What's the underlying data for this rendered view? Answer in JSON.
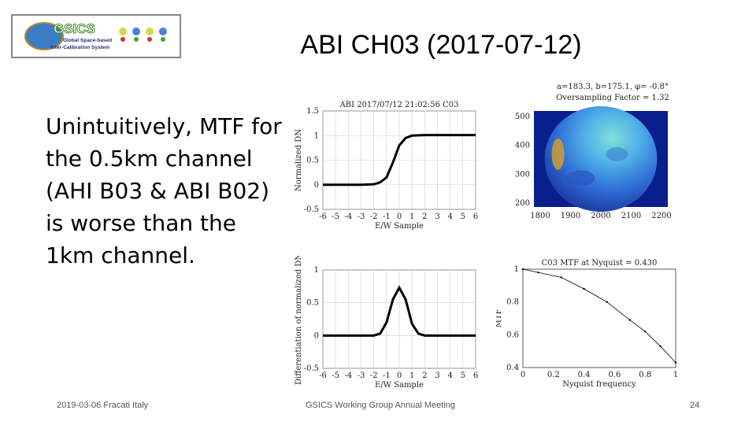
{
  "logo": {
    "name": "GSICS",
    "line1": "Global Space-based",
    "line2": "Inter-Calibration System"
  },
  "title": "ABI CH03 (2017-07-12)",
  "body_text": "Unintuitively, MTF for the 0.5km channel (AHI B03 & ABI B02) is worse than the 1km channel.",
  "footer": {
    "date_place": "2019-03-06 Fracati Italy",
    "meeting": "GSICS Working Group Annual Meeting",
    "page": "24"
  },
  "colors": {
    "plot_line": "#000000",
    "grid": "#cfcfcf",
    "moon_blue": "#2f6fd6",
    "moon_cyan": "#6ad0e0"
  },
  "chart_data": [
    {
      "type": "scatter",
      "title": "ABI 2017/07/12 21:02:56 C03",
      "xlabel": "E/W Sample",
      "ylabel": "Normalized DN",
      "xlim": [
        -6,
        6
      ],
      "ylim": [
        -0.5,
        1.5
      ],
      "xticks": [
        "-6",
        "-5",
        "-4",
        "-3",
        "-2",
        "-1",
        "0",
        "1",
        "2",
        "3",
        "4",
        "5",
        "6"
      ],
      "yticks": [
        "-0.5",
        "0",
        "0.5",
        "1",
        "1.5"
      ],
      "grid": true,
      "points": [
        [
          -6,
          0
        ],
        [
          -3,
          0
        ],
        [
          -2,
          0.01
        ],
        [
          -1.5,
          0.05
        ],
        [
          -1,
          0.15
        ],
        [
          -0.5,
          0.45
        ],
        [
          0,
          0.8
        ],
        [
          0.5,
          0.95
        ],
        [
          1,
          1.0
        ],
        [
          2,
          1.01
        ],
        [
          4,
          1.01
        ],
        [
          6,
          1.01
        ]
      ]
    },
    {
      "type": "line",
      "xlabel": "E/W Sample",
      "ylabel": "Differentiation of normalized DN",
      "xlim": [
        -6,
        6
      ],
      "ylim": [
        -0.5,
        1
      ],
      "xticks": [
        "-6",
        "-5",
        "-4",
        "-3",
        "-2",
        "-1",
        "0",
        "1",
        "2",
        "3",
        "4",
        "5",
        "6"
      ],
      "yticks": [
        "-0.5",
        "0",
        "0.5",
        "1"
      ],
      "grid": true,
      "points": [
        [
          -6,
          0
        ],
        [
          -2,
          0
        ],
        [
          -1.5,
          0.03
        ],
        [
          -1,
          0.2
        ],
        [
          -0.5,
          0.55
        ],
        [
          0,
          0.73
        ],
        [
          0.5,
          0.55
        ],
        [
          1,
          0.18
        ],
        [
          1.5,
          0.03
        ],
        [
          2,
          0
        ],
        [
          6,
          0
        ]
      ]
    },
    {
      "type": "heatmap",
      "title_line1": "a=183.3, b=175.1, φ= -0.8°",
      "title_line2": "Oversampling Factor = 1.32",
      "xticks": [
        "1800",
        "1900",
        "2000",
        "2100",
        "2200"
      ],
      "yticks": [
        "500",
        "400",
        "300",
        "200"
      ],
      "grid": false
    },
    {
      "type": "line",
      "title": "C03 MTF at Nyquist = 0.430",
      "xlabel": "Nyquist frequency",
      "ylabel": "MTF",
      "xlim": [
        0,
        1
      ],
      "ylim": [
        0.4,
        1
      ],
      "xticks": [
        "0",
        "0.2",
        "0.4",
        "0.6",
        "0.8",
        "1"
      ],
      "yticks": [
        "0.4",
        "0.6",
        "0.8",
        "1"
      ],
      "grid": false,
      "points": [
        [
          0,
          1.0
        ],
        [
          0.1,
          0.98
        ],
        [
          0.25,
          0.95
        ],
        [
          0.4,
          0.88
        ],
        [
          0.55,
          0.8
        ],
        [
          0.7,
          0.69
        ],
        [
          0.8,
          0.62
        ],
        [
          0.9,
          0.53
        ],
        [
          1.0,
          0.43
        ]
      ]
    }
  ]
}
